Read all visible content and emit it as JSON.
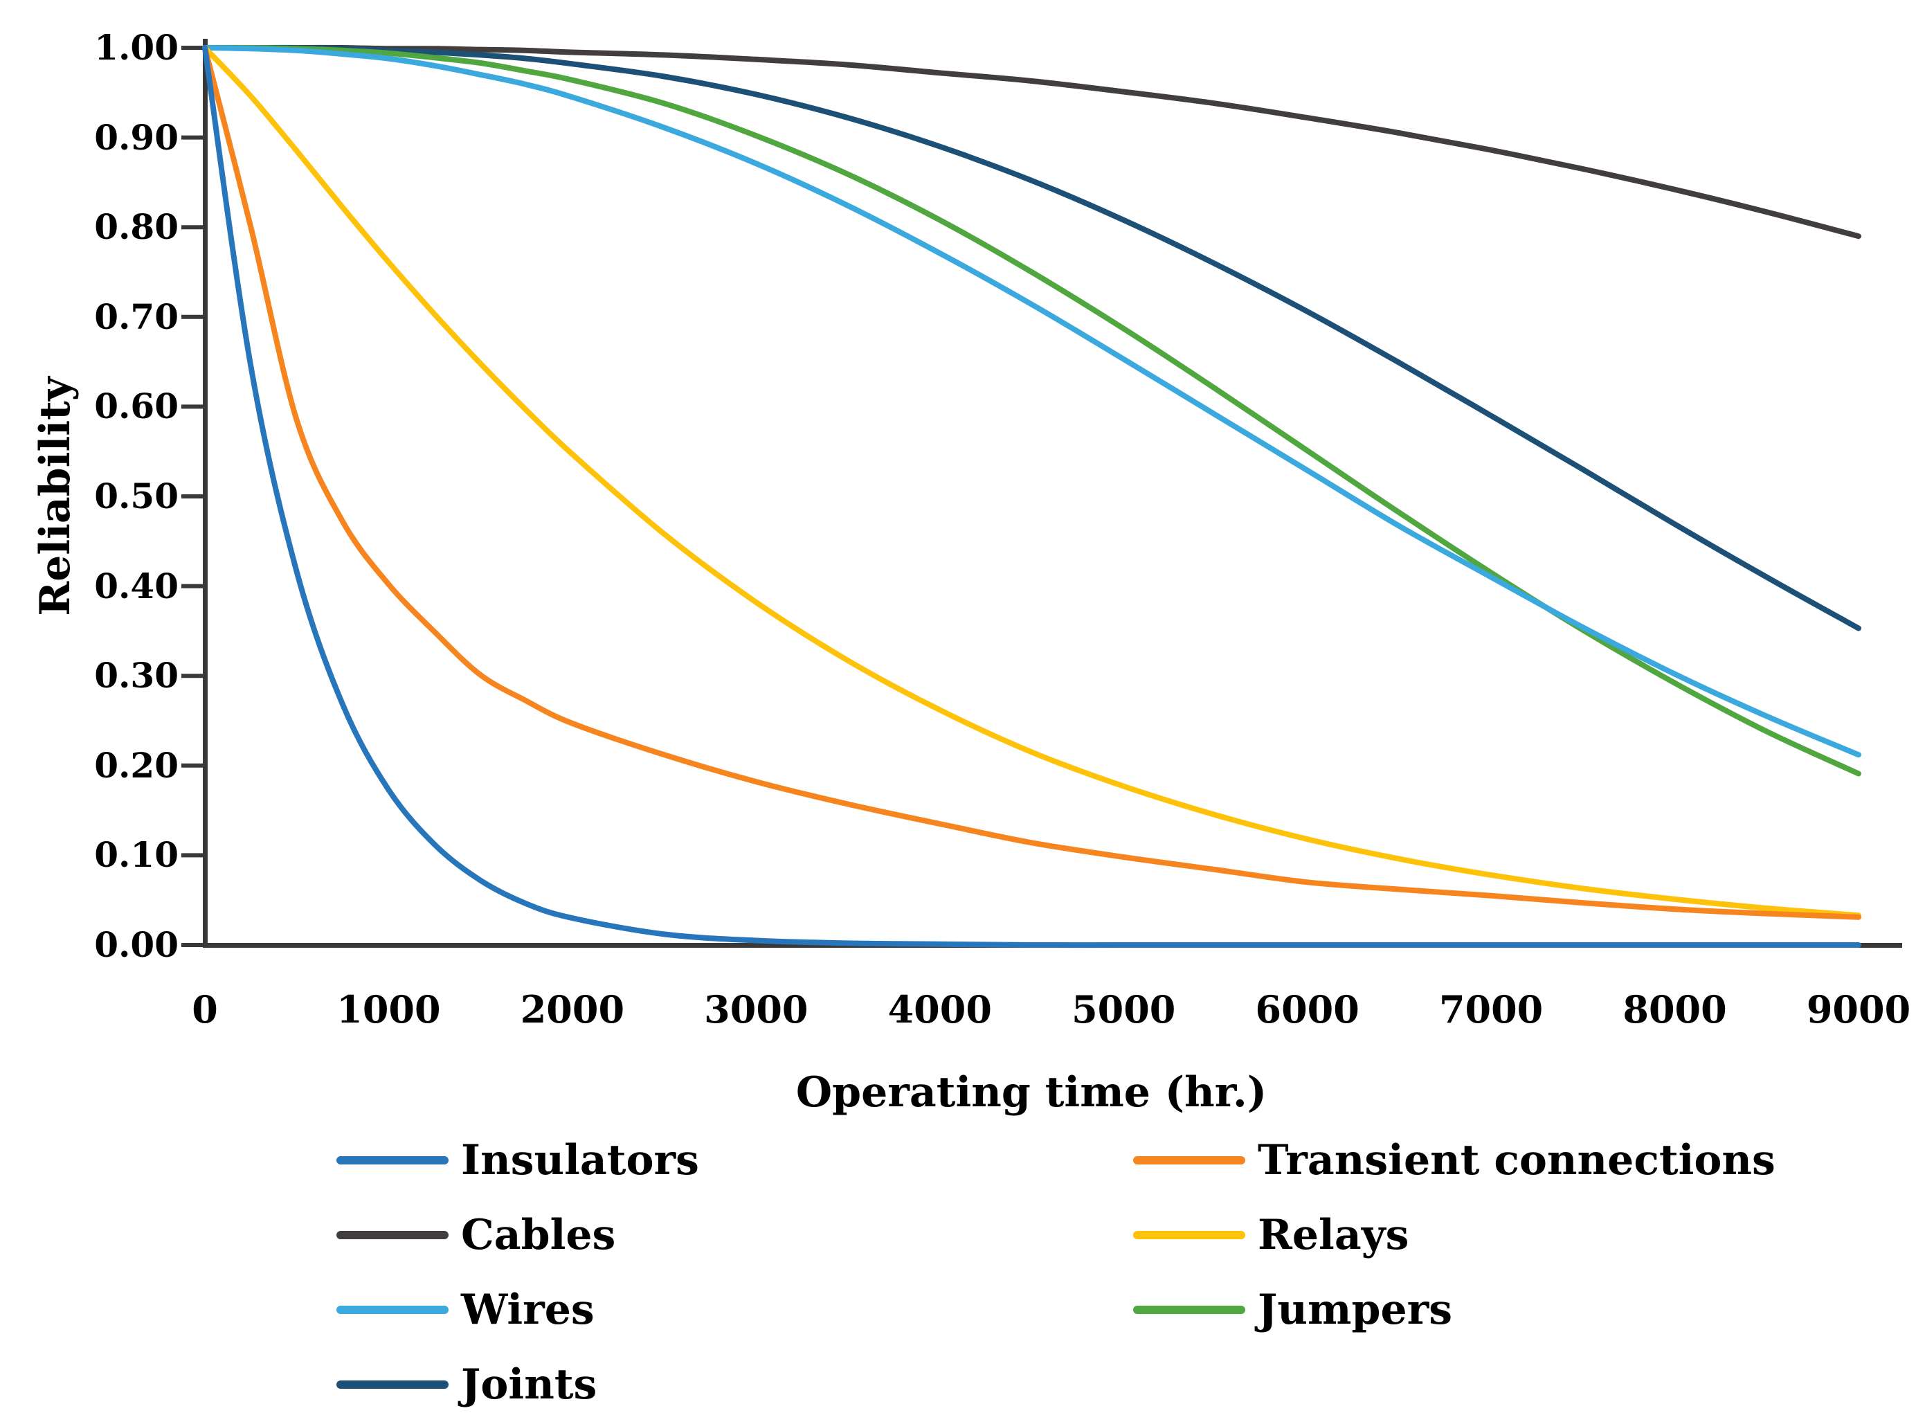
{
  "chart_data": {
    "type": "line",
    "title": "",
    "xlabel": "Operating time (hr.)",
    "ylabel": "Reliability",
    "xlim": [
      0,
      9000
    ],
    "ylim": [
      0.0,
      1.0
    ],
    "grid": false,
    "legend_position": "bottom-two-columns",
    "x_tick_values": [
      0,
      1000,
      2000,
      3000,
      4000,
      5000,
      6000,
      7000,
      8000,
      9000
    ],
    "y_tick_labels": [
      "1.00",
      "0.90",
      "0.80",
      "0.70",
      "0.60",
      "0.50",
      "0.40",
      "0.30",
      "0.20",
      "0.10",
      "0.00"
    ],
    "y_tick_values": [
      1.0,
      0.9,
      0.8,
      0.7,
      0.6,
      0.5,
      0.4,
      0.3,
      0.2,
      0.1,
      0.0
    ],
    "legend_columns": [
      [
        "Insulators",
        "Cables",
        "Wires",
        "Joints"
      ],
      [
        "Transient connections",
        "Relays",
        "Jumpers"
      ]
    ],
    "x_sample_hours": [
      0,
      250,
      500,
      750,
      1000,
      1250,
      1500,
      1750,
      2000,
      2500,
      3000,
      3500,
      4000,
      4500,
      5000,
      5500,
      6000,
      6500,
      7000,
      7500,
      8000,
      8500,
      9000
    ],
    "series": [
      {
        "name": "Cables",
        "color": "#433E3E",
        "values": [
          1.0,
          1.0,
          1.0,
          1.0,
          0.999,
          0.999,
          0.998,
          0.997,
          0.995,
          0.992,
          0.987,
          0.981,
          0.972,
          0.963,
          0.951,
          0.938,
          0.922,
          0.905,
          0.886,
          0.865,
          0.842,
          0.817,
          0.79
        ]
      },
      {
        "name": "Joints",
        "color": "#1D5077",
        "values": [
          1.0,
          1.0,
          1.0,
          0.999,
          0.997,
          0.995,
          0.992,
          0.988,
          0.982,
          0.968,
          0.948,
          0.922,
          0.89,
          0.852,
          0.808,
          0.759,
          0.706,
          0.649,
          0.59,
          0.53,
          0.469,
          0.41,
          0.353
        ]
      },
      {
        "name": "Jumpers",
        "color": "#50A63F",
        "values": [
          1.0,
          1.0,
          0.999,
          0.997,
          0.994,
          0.989,
          0.983,
          0.974,
          0.964,
          0.938,
          0.902,
          0.859,
          0.808,
          0.75,
          0.687,
          0.62,
          0.551,
          0.482,
          0.415,
          0.351,
          0.292,
          0.238,
          0.191
        ]
      },
      {
        "name": "Wires",
        "color": "#3BA8DE",
        "values": [
          1.0,
          0.999,
          0.997,
          0.993,
          0.988,
          0.98,
          0.97,
          0.959,
          0.945,
          0.911,
          0.871,
          0.824,
          0.771,
          0.714,
          0.653,
          0.591,
          0.529,
          0.467,
          0.41,
          0.354,
          0.302,
          0.255,
          0.212
        ]
      },
      {
        "name": "Relays",
        "color": "#FFC20A",
        "values": [
          1.0,
          0.946,
          0.885,
          0.822,
          0.761,
          0.703,
          0.648,
          0.596,
          0.547,
          0.458,
          0.382,
          0.317,
          0.262,
          0.215,
          0.177,
          0.145,
          0.118,
          0.096,
          0.078,
          0.063,
          0.051,
          0.041,
          0.033
        ]
      },
      {
        "name": "Transient connections",
        "color": "#F6851F",
        "values": [
          1.0,
          0.8,
          0.585,
          0.472,
          0.402,
          0.349,
          0.301,
          0.272,
          0.247,
          0.212,
          0.182,
          0.157,
          0.135,
          0.114,
          0.098,
          0.084,
          0.07,
          0.062,
          0.055,
          0.047,
          0.04,
          0.035,
          0.031
        ]
      },
      {
        "name": "Insulators",
        "color": "#2775BB",
        "values": [
          1.0,
          0.645,
          0.416,
          0.268,
          0.173,
          0.112,
          0.072,
          0.046,
          0.03,
          0.012,
          0.005,
          0.002,
          0.001,
          0.0,
          0.0,
          0.0,
          0.0,
          0.0,
          0.0,
          0.0,
          0.0,
          0.0,
          0.0
        ]
      }
    ]
  },
  "styles": {
    "axis_color": "#3B3838",
    "text_color": "#000000",
    "background": "#FFFFFF"
  }
}
